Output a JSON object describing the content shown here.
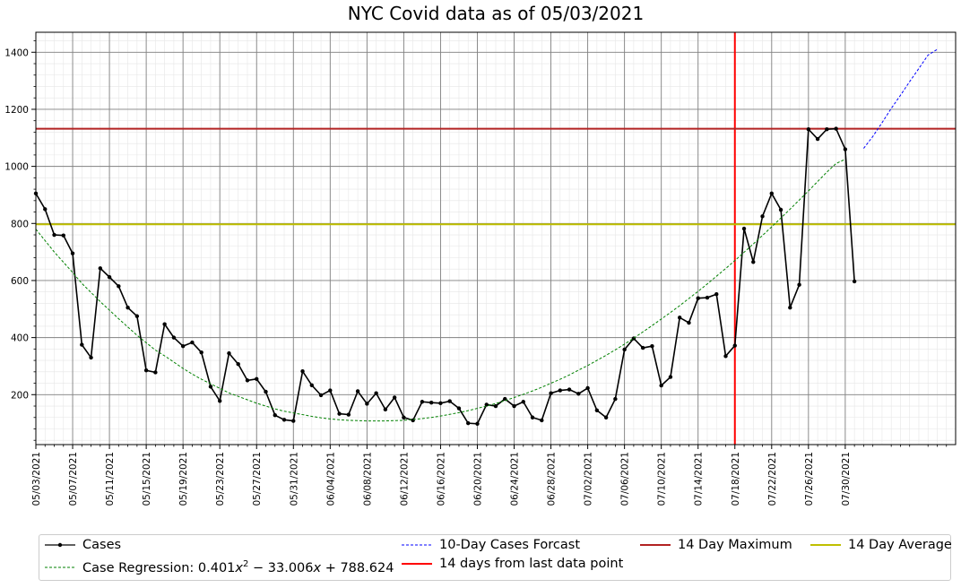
{
  "chart_data": {
    "type": "line",
    "title": "NYC Covid data as of 05/03/2021",
    "x_tick_labels": [
      "05/03/2021",
      "05/07/2021",
      "05/11/2021",
      "05/15/2021",
      "05/19/2021",
      "05/23/2021",
      "05/27/2021",
      "05/31/2021",
      "06/04/2021",
      "06/08/2021",
      "06/12/2021",
      "06/16/2021",
      "06/20/2021",
      "06/24/2021",
      "06/28/2021",
      "07/02/2021",
      "07/06/2021",
      "07/10/2021",
      "07/14/2021",
      "07/18/2021",
      "07/22/2021",
      "07/26/2021",
      "07/30/2021"
    ],
    "y_ticks": [
      200,
      400,
      600,
      800,
      1000,
      1200,
      1400
    ],
    "xlim": [
      0,
      100
    ],
    "ylim": [
      25,
      1470
    ],
    "grid": true,
    "legend_position": "bottom",
    "series": [
      {
        "name": "Cases",
        "color": "#000000",
        "style": "solid-with-points",
        "x_start": 0,
        "values": [
          905,
          850,
          760,
          758,
          695,
          375,
          330,
          643,
          612,
          580,
          505,
          475,
          285,
          278,
          447,
          400,
          370,
          383,
          348,
          228,
          178,
          345,
          307,
          250,
          255,
          210,
          128,
          112,
          108,
          282,
          233,
          198,
          215,
          133,
          130,
          212,
          168,
          205,
          148,
          190,
          120,
          110,
          175,
          172,
          170,
          177,
          152,
          100,
          98,
          165,
          160,
          185,
          160,
          175,
          120,
          110,
          205,
          215,
          218,
          203,
          223,
          145,
          120,
          185,
          358,
          397,
          364,
          370,
          232,
          262,
          470,
          452,
          538,
          540,
          552,
          335,
          372,
          782,
          665,
          825,
          905,
          848,
          505,
          585,
          1130,
          1096,
          1130,
          1132,
          1060,
          597
        ]
      },
      {
        "name": "10-Day Cases Forcast",
        "color": "#0000ff",
        "style": "dashed",
        "x_start": 90,
        "values": [
          1063,
          1105,
          1153,
          1203,
          1249,
          1297,
          1343,
          1390,
          1410
        ]
      },
      {
        "name": "Case Regression: 0.401x² − 33.006x + 788.624",
        "color": "#008000",
        "style": "dashed",
        "x_start": 0,
        "values": [
          780,
          740,
          700,
          664,
          628,
          590,
          558,
          526,
          496,
          466,
          437,
          408,
          382,
          356,
          336,
          314,
          292,
          272,
          254,
          238,
          222,
          206,
          194,
          182,
          170,
          160,
          150,
          142,
          136,
          130,
          124,
          119,
          115,
          112,
          110,
          109,
          108,
          108,
          108,
          109,
          110,
          113,
          116,
          120,
          125,
          131,
          137,
          144,
          152,
          160,
          169,
          179,
          190,
          201,
          213,
          226,
          240,
          254,
          269,
          286,
          302,
          320,
          338,
          357,
          377,
          398,
          420,
          442,
          465,
          488,
          512,
          537,
          562,
          588,
          615,
          642,
          670,
          699,
          728,
          758,
          788,
          819,
          850,
          882,
          914,
          947,
          980,
          1010,
          1025
        ]
      }
    ],
    "reference_lines": [
      {
        "name": "14 days from last data point",
        "orientation": "vertical",
        "x": 76,
        "color": "#ff0000"
      },
      {
        "name": "14 Day Maximum",
        "orientation": "horizontal",
        "y": 1132,
        "color": "#b22222"
      },
      {
        "name": "14 Day Average",
        "orientation": "horizontal",
        "y": 797,
        "color": "#bfbf00"
      }
    ]
  },
  "legend": {
    "cases": "Cases",
    "forecast": "10-Day Cases Forcast",
    "regression_prefix": "Case Regression: 0.401",
    "regression_x": "x",
    "regression_exp": "2",
    "regression_suffix": " − 33.006",
    "regression_x2": "x",
    "regression_const": " + 788.624",
    "vertical": "14 days from last data point",
    "maximum": "14 Day Maximum",
    "average": "14 Day Average"
  }
}
